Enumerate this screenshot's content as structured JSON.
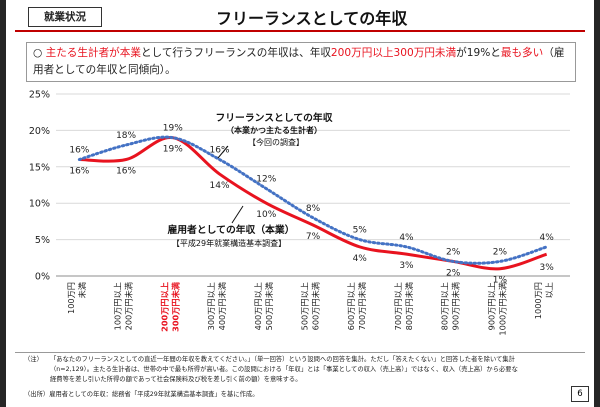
{
  "header": {
    "tag": "就業状況",
    "title": "フリーランスとしての年収"
  },
  "summary": {
    "bullet": "○",
    "p1": "主たる生計者が本業",
    "p2": "として行うフリーランスの年収は、年収",
    "p3": "200万円以上300万円未満",
    "p4": "が19%と",
    "p5": "最も多い",
    "p6": "（雇用者としての年収と同傾向）。"
  },
  "colors": {
    "freelance": "#e8131f",
    "employee": "#4472c4",
    "highlight": "#e8131f",
    "title_rule": "#c00000"
  },
  "chart_data": {
    "type": "line",
    "y_unit": "%",
    "ylim": [
      0,
      25
    ],
    "yticks": [
      "0%",
      "5%",
      "10%",
      "15%",
      "20%",
      "25%"
    ],
    "categories": [
      [
        "100万円",
        "未満"
      ],
      [
        "100万円以上",
        "200万円未満"
      ],
      [
        "200万円以上",
        "300万円未満"
      ],
      [
        "300万円以上",
        "400万円未満"
      ],
      [
        "400万円以上",
        "500万円未満"
      ],
      [
        "500万円以上",
        "600万円未満"
      ],
      [
        "600万円以上",
        "700万円未満"
      ],
      [
        "700万円以上",
        "800万円未満"
      ],
      [
        "800万円以上",
        "900万円未満"
      ],
      [
        "900万円以上",
        "1000万円未満"
      ],
      [
        "1000万円",
        "以上"
      ]
    ],
    "highlight_category": 2,
    "series": [
      {
        "name": "フリーランスとしての年収",
        "subtitle": "（本業かつ主たる生計者）",
        "source": "【今回の調査】",
        "style": "solid",
        "values": [
          16,
          16,
          19,
          14,
          10,
          7,
          4,
          3,
          2,
          1,
          3
        ],
        "labels": [
          "16%",
          "16%",
          "19%",
          "14%",
          "10%",
          "7%",
          "4%",
          "3%",
          "2%",
          "1%",
          "3%"
        ]
      },
      {
        "name": "雇用者としての年収（本業）",
        "subtitle": "",
        "source": "【平成29年就業構造基本調査】",
        "style": "dotted",
        "values": [
          16,
          18,
          19,
          16,
          12,
          8,
          5,
          4,
          2,
          2,
          4
        ],
        "labels": [
          "16%",
          "18%",
          "19%",
          "16%",
          "12%",
          "8%",
          "5%",
          "4%",
          "2%",
          "2%",
          "4%"
        ]
      }
    ]
  },
  "footnote": {
    "label": "（注）",
    "line1": "「あなたのフリーランスとしての直近一年間の年収を教えてください。」（単一回答）という設問への回答を集計。ただし「答えたくない」と回答した者を除いて集計",
    "line2": "（n=2,129）。主たる生計者は、世帯の中で最も所得が高い者。この設問における「年収」とは「事業としての収入（売上高）」ではなく、収入（売上高）から必要な",
    "line3": "経費等を差し引いた所得の額であって社会保険料及び税を差し引く前の額）を意味する。"
  },
  "source_note": "（出所）雇用者としての年収：総務省「平成29年就業構造基本調査」を基に作成。",
  "page_number": "6"
}
